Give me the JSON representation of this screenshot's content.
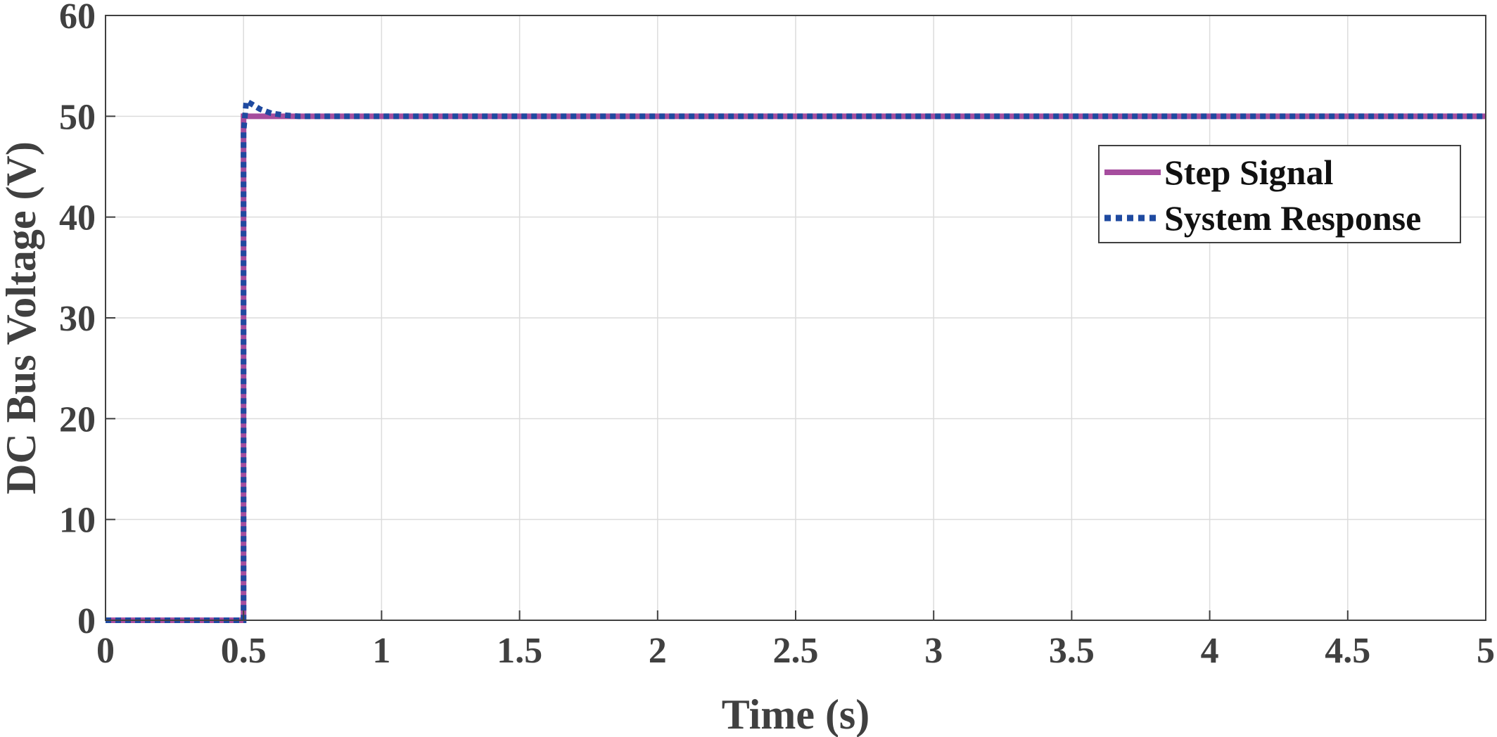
{
  "chart_data": {
    "type": "line",
    "title": "",
    "xlabel": "Time (s)",
    "ylabel": "DC Bus Voltage (V)",
    "xlim": [
      0,
      5
    ],
    "ylim": [
      0,
      60
    ],
    "xticks": [
      0,
      0.5,
      1,
      1.5,
      2,
      2.5,
      3,
      3.5,
      4,
      4.5,
      5
    ],
    "xtick_labels": [
      "0",
      "0.5",
      "1",
      "1.5",
      "2",
      "2.5",
      "3",
      "3.5",
      "4",
      "4.5",
      "5"
    ],
    "yticks": [
      0,
      10,
      20,
      30,
      40,
      50,
      60
    ],
    "ytick_labels": [
      "0",
      "10",
      "20",
      "30",
      "40",
      "50",
      "60"
    ],
    "grid": true,
    "legend_position": "top-right",
    "series": [
      {
        "name": "Step Signal",
        "color": "#A64D9E",
        "style": "solid",
        "x": [
          0,
          0.5,
          0.5,
          5
        ],
        "y": [
          0,
          0,
          50,
          50
        ]
      },
      {
        "name": "System Response",
        "color": "#1F4AA0",
        "style": "dotted",
        "x": [
          0,
          0.5,
          0.5,
          0.51,
          0.53,
          0.56,
          0.6,
          0.65,
          0.7,
          0.8,
          5
        ],
        "y": [
          0,
          0,
          48.5,
          51.5,
          51.2,
          50.7,
          50.3,
          50.1,
          50.0,
          50.0,
          50.0
        ]
      }
    ]
  }
}
